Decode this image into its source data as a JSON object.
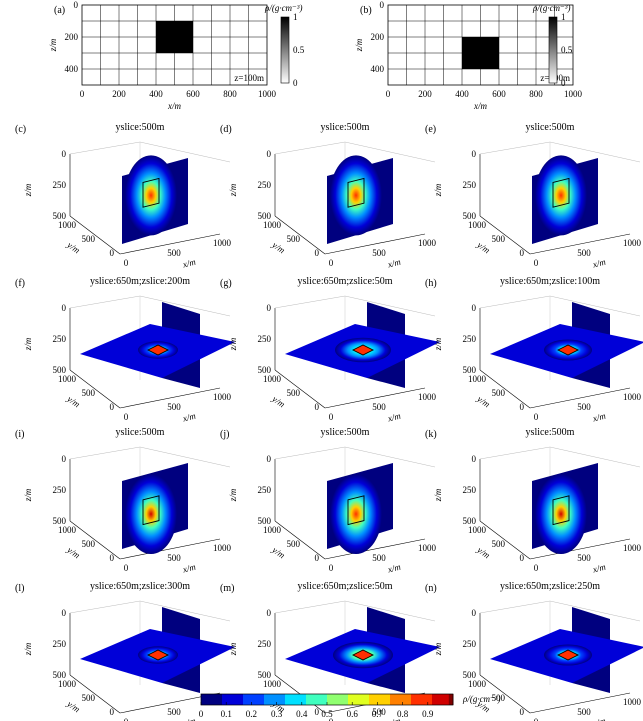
{
  "colors": {
    "background": "#ffffff",
    "anomaly": "#000000",
    "field_low": "#0000a8",
    "field_high": "#8b0000",
    "box_outline": "#000000"
  },
  "colormap": [
    "#00007f",
    "#0000d8",
    "#0040ff",
    "#0090ff",
    "#00e0ff",
    "#40ffbf",
    "#90ff70",
    "#e0ff20",
    "#ffd000",
    "#ff8000",
    "#ff3000",
    "#d00000",
    "#800000"
  ],
  "chart_data": [
    {
      "type": "heatmap",
      "panel": "(a)",
      "xlabel": "x/m",
      "ylabel": "z/m",
      "xticks": [
        0,
        200,
        400,
        600,
        800,
        1000
      ],
      "yticks": [
        0,
        200,
        400
      ],
      "xlim": [
        0,
        1000
      ],
      "zlim": [
        0,
        500
      ],
      "grid": true,
      "anomaly_block": {
        "x": [
          400,
          600
        ],
        "z": [
          100,
          300
        ],
        "value": 1
      },
      "annotation": "z=100m",
      "colorbar": {
        "label": "ρ/(g·cm⁻³)",
        "ticks": [
          0,
          0.5,
          1
        ]
      }
    },
    {
      "type": "heatmap",
      "panel": "(b)",
      "xlabel": "x/m",
      "ylabel": "z/m",
      "xticks": [
        0,
        200,
        400,
        600,
        800,
        1000
      ],
      "yticks": [
        0,
        200,
        400
      ],
      "xlim": [
        0,
        1000
      ],
      "zlim": [
        0,
        500
      ],
      "grid": true,
      "anomaly_block": {
        "x": [
          400,
          600
        ],
        "z": [
          200,
          400
        ],
        "value": 1
      },
      "annotation": "z=200m",
      "colorbar": {
        "label": "ρ/(g·cm⁻³)",
        "ticks": [
          0,
          0.5,
          1
        ]
      }
    },
    {
      "type": "heatmap",
      "panel": "(c)",
      "title": "yslice:500m",
      "view": "yslice",
      "peak": 0.95,
      "spread": 0.55,
      "box_z": [
        100,
        300
      ]
    },
    {
      "type": "heatmap",
      "panel": "(d)",
      "title": "yslice:500m",
      "view": "yslice",
      "peak": 0.95,
      "spread": 0.5,
      "box_z": [
        100,
        300
      ]
    },
    {
      "type": "heatmap",
      "panel": "(e)",
      "title": "yslice:500m",
      "view": "yslice",
      "peak": 0.95,
      "spread": 0.55,
      "box_z": [
        100,
        300
      ]
    },
    {
      "type": "heatmap",
      "panel": "(f)",
      "title": "yslice:650m;zslice:200m",
      "view": "zslice",
      "peak": 0.95,
      "spread": 0.15
    },
    {
      "type": "heatmap",
      "panel": "(g)",
      "title": "yslice:650m;zslice:50m",
      "view": "zslice",
      "peak": 0.95,
      "spread": 0.35
    },
    {
      "type": "heatmap",
      "panel": "(h)",
      "title": "yslice:650m;zslice:100m",
      "view": "zslice",
      "peak": 0.95,
      "spread": 0.25
    },
    {
      "type": "heatmap",
      "panel": "(i)",
      "title": "yslice:500m",
      "view": "yslice",
      "peak": 0.95,
      "spread": 0.6,
      "box_z": [
        200,
        400
      ]
    },
    {
      "type": "heatmap",
      "panel": "(j)",
      "title": "yslice:500m",
      "view": "yslice",
      "peak": 0.95,
      "spread": 0.55,
      "box_z": [
        200,
        400
      ]
    },
    {
      "type": "heatmap",
      "panel": "(k)",
      "title": "yslice:500m",
      "view": "yslice",
      "peak": 0.95,
      "spread": 0.6,
      "box_z": [
        200,
        400
      ]
    },
    {
      "type": "heatmap",
      "panel": "(l)",
      "title": "yslice:650m;zslice:300m",
      "view": "zslice",
      "peak": 0.95,
      "spread": 0.15
    },
    {
      "type": "heatmap",
      "panel": "(m)",
      "title": "yslice:650m;zslice:50m",
      "view": "zslice",
      "peak": 0.95,
      "spread": 0.4
    },
    {
      "type": "heatmap",
      "panel": "(n)",
      "title": "yslice:650m;zslice:250m",
      "view": "zslice",
      "peak": 0.95,
      "spread": 0.25
    }
  ],
  "axes3d": {
    "zlabel": "z/m",
    "ylabel": "y/m",
    "xlabel": "x/m",
    "zticks": [
      "0",
      "250",
      "500"
    ],
    "yticks": [
      "1000",
      "500",
      "0"
    ],
    "xticks": [
      "0",
      "500",
      "1000"
    ]
  },
  "colorbar_bottom": {
    "label": "ρ/(g·cm⁻³)",
    "ticks": [
      "0",
      "0.1",
      "0.2",
      "0.3",
      "0.4",
      "0.5",
      "0.6",
      "0.7",
      "0.8",
      "0.9"
    ]
  }
}
